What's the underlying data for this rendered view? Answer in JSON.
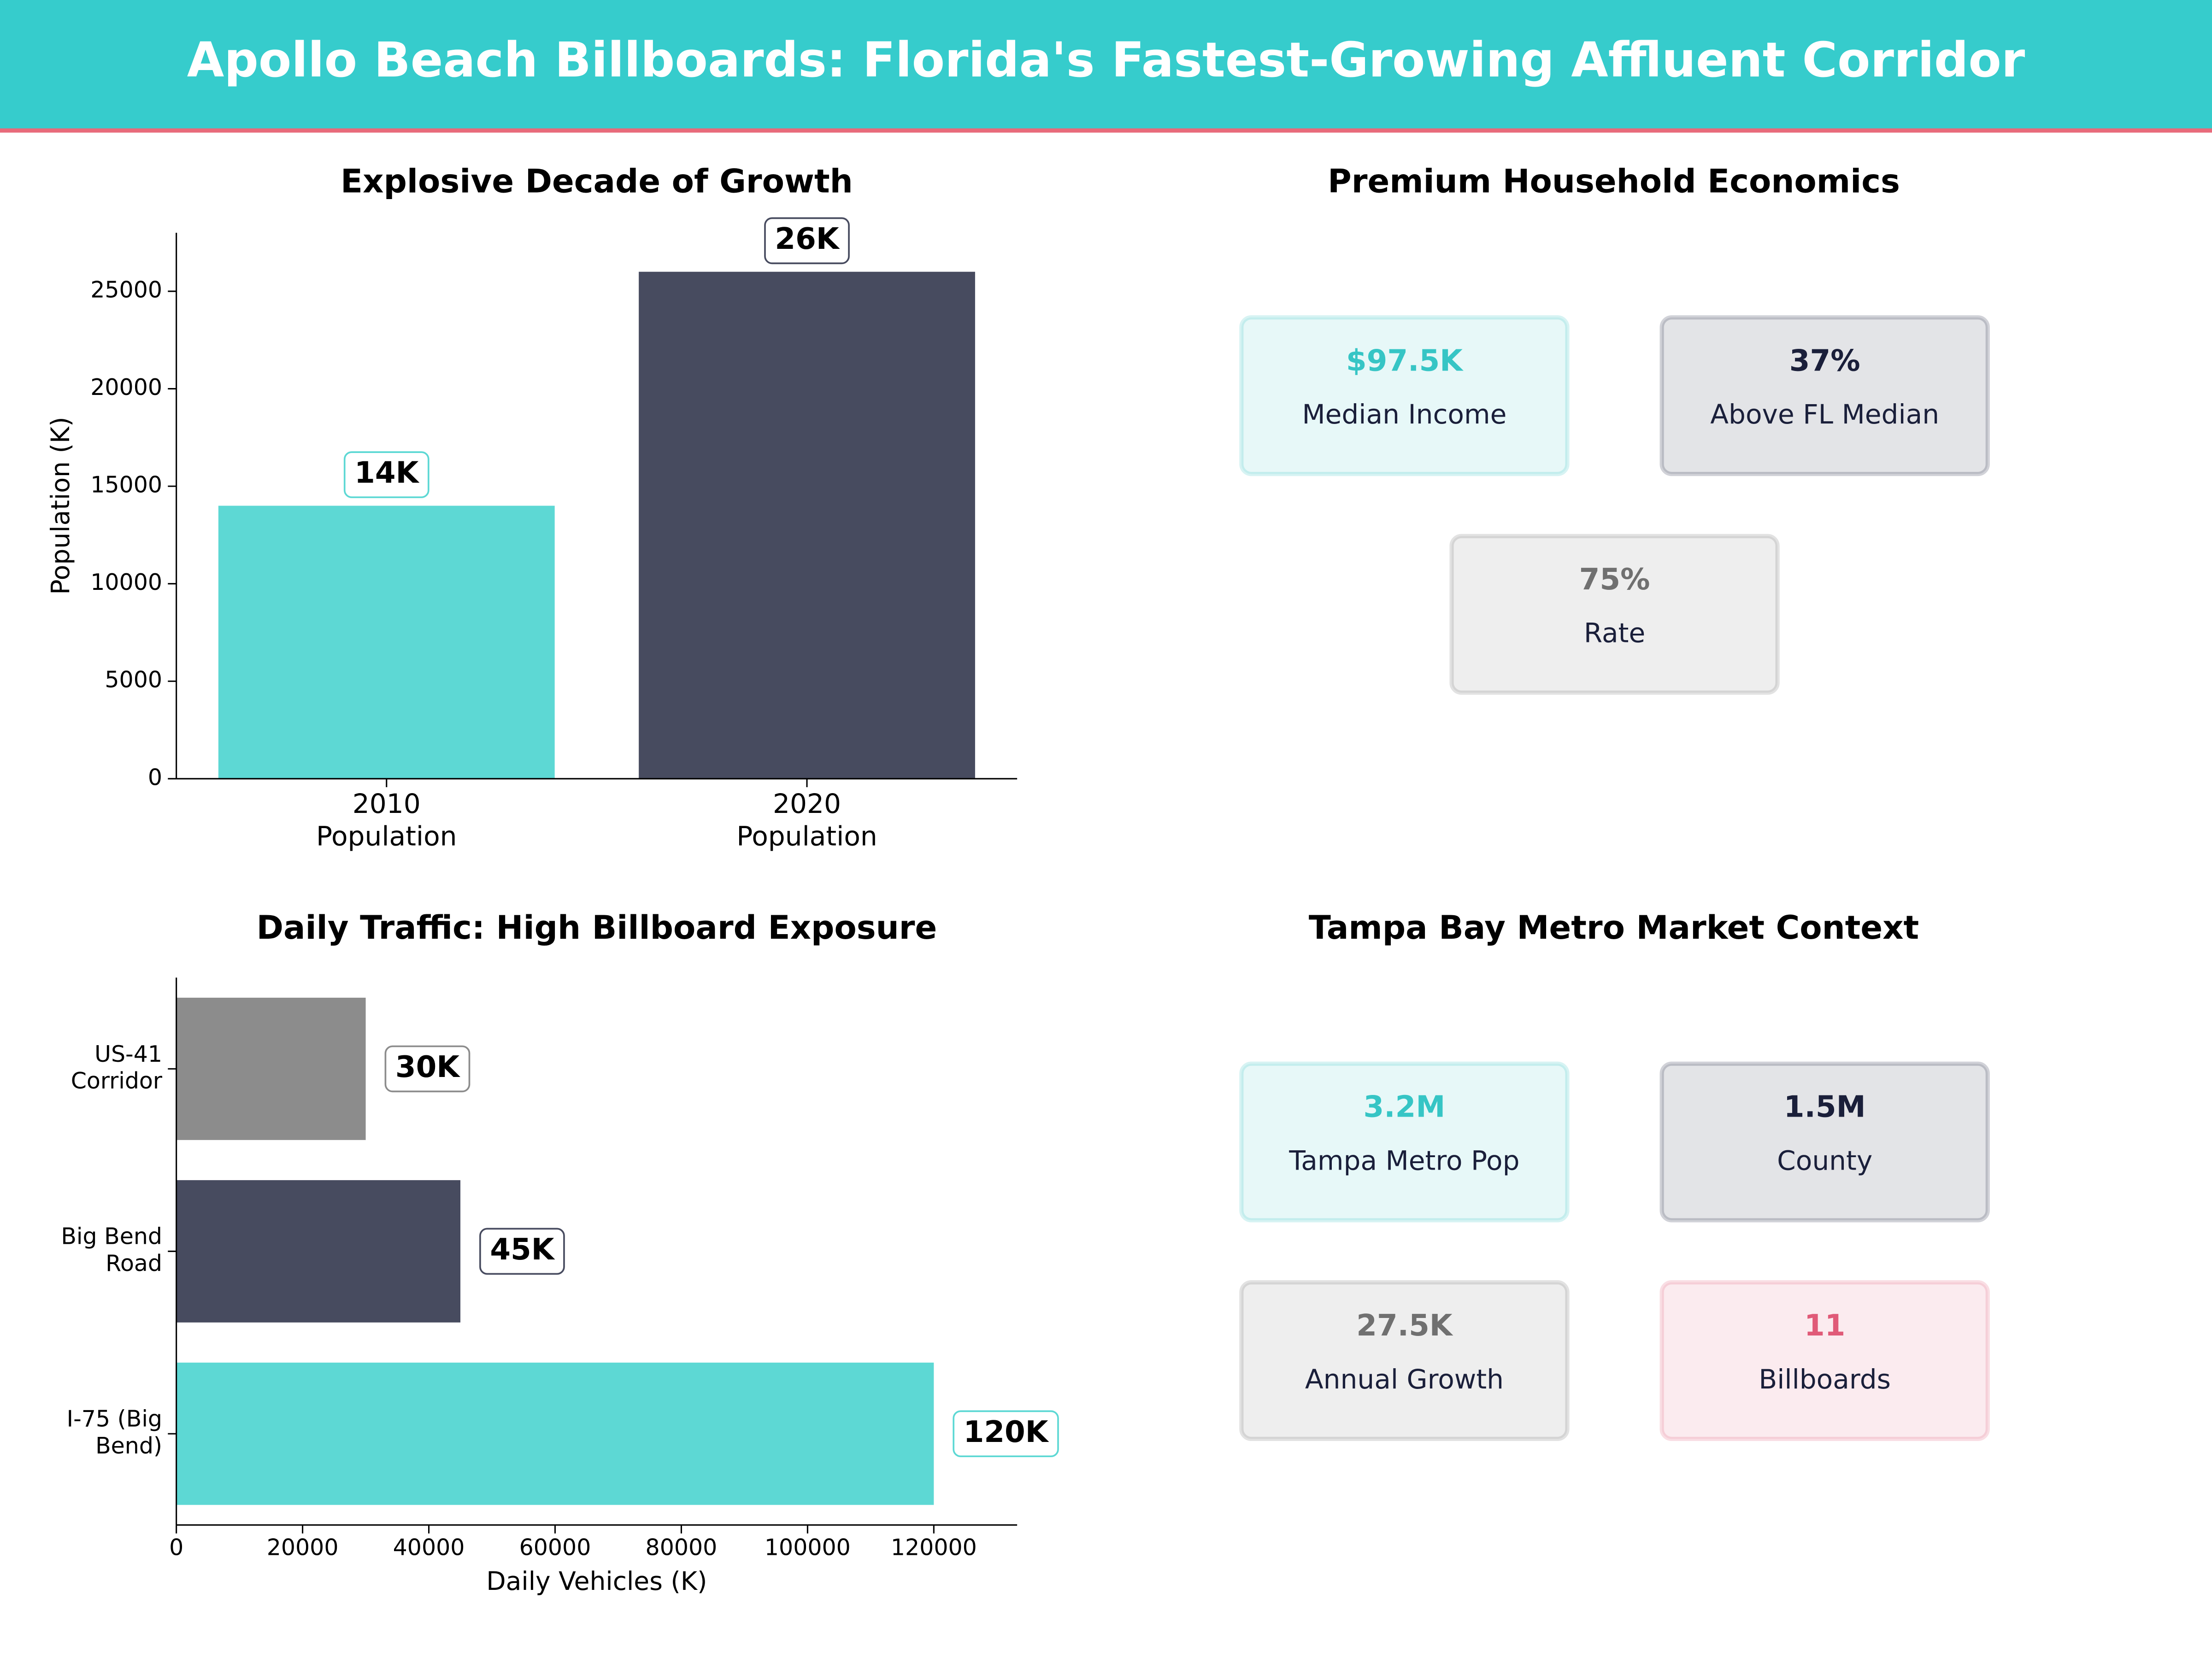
{
  "header": {
    "title": "Apollo Beach Billboards: Florida's Fastest-Growing Affluent Corridor"
  },
  "chart_data": [
    {
      "type": "bar",
      "title": "Explosive Decade of Growth",
      "ylabel": "Population (K)",
      "categories": [
        [
          "2010",
          "Population"
        ],
        [
          "2020",
          "Population"
        ]
      ],
      "values": [
        14000,
        26000
      ],
      "value_labels": [
        "14K",
        "26K"
      ],
      "colors": [
        "#5dd8d4",
        "#474b5f"
      ],
      "ylim": [
        0,
        28000
      ],
      "yticks": [
        0,
        5000,
        10000,
        15000,
        20000,
        25000
      ]
    },
    {
      "type": "cards",
      "title": "Premium Household Economics",
      "cards": [
        {
          "value": "$97.5K",
          "label": "Median Income",
          "color": "#36c5c5"
        },
        {
          "value": "37%",
          "label": "Above FL Median",
          "color": "#1a1f3a"
        },
        {
          "value": "75%",
          "label": "Rate",
          "color": "#707070"
        }
      ]
    },
    {
      "type": "hbar",
      "title": "Daily Traffic: High Billboard Exposure",
      "xlabel": "Daily Vehicles (K)",
      "categories": [
        [
          "US-41",
          "Corridor"
        ],
        [
          "Big Bend",
          "Road"
        ],
        [
          "I-75 (Big",
          "Bend)"
        ]
      ],
      "values": [
        30000,
        45000,
        120000
      ],
      "value_labels": [
        "30K",
        "45K",
        "120K"
      ],
      "colors": [
        "#8c8c8c",
        "#474b5f",
        "#5dd8d4"
      ],
      "xlim": [
        0,
        133200
      ],
      "xticks": [
        0,
        20000,
        40000,
        60000,
        80000,
        100000,
        120000
      ]
    },
    {
      "type": "cards",
      "title": "Tampa Bay Metro Market Context",
      "cards": [
        {
          "value": "3.2M",
          "label": "Tampa Metro Pop",
          "color": "#36c5c5"
        },
        {
          "value": "1.5M",
          "label": "County",
          "color": "#1a1f3a"
        },
        {
          "value": "27.5K",
          "label": "Annual Growth",
          "color": "#707070"
        },
        {
          "value": "11",
          "label": "Billboards",
          "color": "#e05a78"
        }
      ]
    }
  ]
}
